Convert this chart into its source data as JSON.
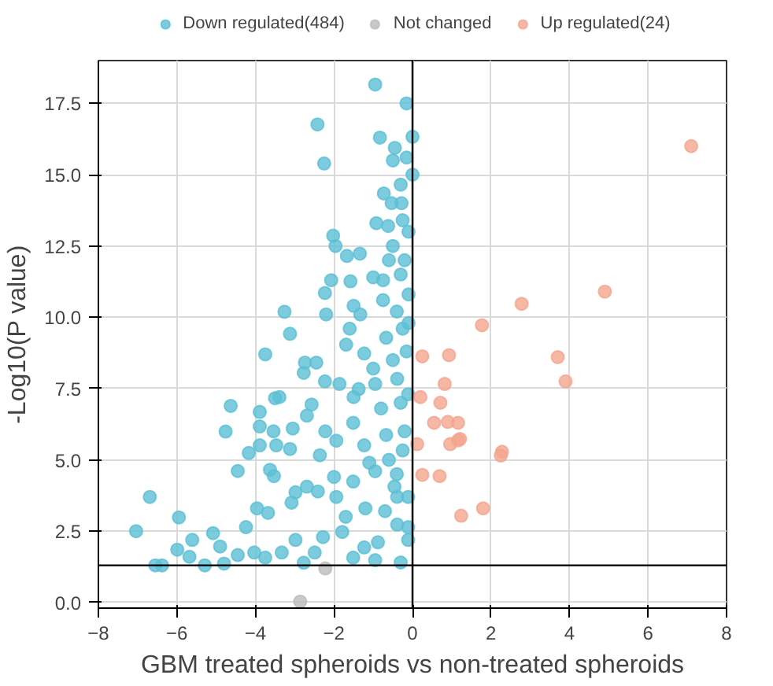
{
  "chart_data": {
    "type": "scatter",
    "xlabel": "GBM treated spheroids vs non-treated spheroids",
    "ylabel": "-Log10(P value)",
    "xlim": [
      -8,
      8
    ],
    "ylim": [
      -0.2,
      19
    ],
    "xticks": [
      -8,
      -6,
      -4,
      -2,
      0,
      2,
      4,
      6,
      8
    ],
    "yticks": [
      {
        "value": 0,
        "label": "0.0"
      },
      {
        "value": 2.5,
        "label": "2.5"
      },
      {
        "value": 5,
        "label": "5.0"
      },
      {
        "value": 7.5,
        "label": "7.5"
      },
      {
        "value": 10,
        "label": "10.0"
      },
      {
        "value": 12.5,
        "label": "12.5"
      },
      {
        "value": 15,
        "label": "15.0"
      },
      {
        "value": 17.5,
        "label": "17.5"
      }
    ],
    "grid": true,
    "legend": "top",
    "marker": "circle",
    "ref_lines": [
      {
        "axis": "y",
        "value": 1.3,
        "color": "#000000"
      },
      {
        "axis": "x",
        "value": 0,
        "color": "#000000"
      }
    ],
    "series": [
      {
        "name": "Down regulated(484)",
        "color": "#5bbfd6",
        "x": [
          -0.95,
          -0.15,
          -2.42,
          -2.25,
          -0.83,
          0,
          -0.45,
          -0.5,
          -0.15,
          0,
          -0.3,
          -0.73,
          -0.53,
          -0.28,
          -0.92,
          -0.62,
          -0.25,
          -0.1,
          -2.02,
          -1.96,
          -1.34,
          -1.67,
          -0.6,
          -0.2,
          -2.07,
          -1.58,
          -1.0,
          -0.75,
          -2.23,
          -1.5,
          -0.75,
          -3.26,
          -2.2,
          -1.33,
          -0.4,
          -0.1,
          -1.6,
          -3.12,
          -3.75,
          -2.74,
          -2.45,
          -2.77,
          -1.69,
          -1.23,
          -0.67,
          -0.25,
          -2.23,
          -1.86,
          -1.37,
          -0.95,
          -0.39,
          -0.11,
          -4.63,
          -3.5,
          -3.39,
          -2.57,
          -2.69,
          -3.89,
          -3.89,
          -3.54,
          -3.05,
          -4.76,
          -3.47,
          -3.89,
          -4.17,
          -3.12,
          -2.22,
          -1.94,
          -1.51,
          -1.23,
          -0.67,
          -0.25,
          -2.36,
          -4.45,
          -3.63,
          -3.53,
          -2.98,
          -3.08,
          -2.69,
          -2.41,
          -1.94,
          -1.51,
          -0.95,
          -0.46,
          -0.11,
          -6.69,
          -3.96,
          -3.68,
          -5.95,
          -7.04,
          -5.08,
          -5.61,
          -5.99,
          -5.68,
          -6.55,
          -6.38,
          -5.29,
          -4.8,
          -4.9,
          -4.45,
          -4.24,
          -4.03,
          -3.75,
          -3.33,
          -2.98,
          -2.77,
          -2.49,
          -2.28,
          -1.79,
          -1.51,
          -1.23,
          -0.95,
          -0.88,
          -0.39,
          -0.11,
          -0.11,
          -0.39,
          -0.5,
          -0.3,
          -0.8,
          -0.2,
          -0.6,
          -1.1,
          -0.4,
          -1.5,
          -1.0,
          -0.15,
          -0.7,
          -0.3,
          -1.2,
          -2.0,
          -1.7,
          -0.1,
          -0.3,
          -0.5
        ],
        "values": [
          18.16,
          17.5,
          16.76,
          15.39,
          16.3,
          16.33,
          15.94,
          15.5,
          15.6,
          15.0,
          14.65,
          14.34,
          14.0,
          14.0,
          13.3,
          13.2,
          13.4,
          13.0,
          12.86,
          12.5,
          12.23,
          12.15,
          12.0,
          12.0,
          11.3,
          11.26,
          11.4,
          11.3,
          10.85,
          10.4,
          10.6,
          10.19,
          10.1,
          10.1,
          10.2,
          9.8,
          9.6,
          9.42,
          8.7,
          8.41,
          8.41,
          8.05,
          9.04,
          8.73,
          9.28,
          9.6,
          7.75,
          7.66,
          7.48,
          7.66,
          7.84,
          7.3,
          6.89,
          7.16,
          7.2,
          6.94,
          6.55,
          6.68,
          6.17,
          6.0,
          6.1,
          5.99,
          5.51,
          5.51,
          5.24,
          5.38,
          6.0,
          5.67,
          6.3,
          5.51,
          5.87,
          5.33,
          5.16,
          4.61,
          4.65,
          4.43,
          3.86,
          3.5,
          4.06,
          3.89,
          3.7,
          4.24,
          4.6,
          4.06,
          3.7,
          3.7,
          3.3,
          3.14,
          2.98,
          2.5,
          2.43,
          2.19,
          1.85,
          1.6,
          1.3,
          1.3,
          1.3,
          1.36,
          1.96,
          1.66,
          2.64,
          1.75,
          1.57,
          1.75,
          2.19,
          1.39,
          1.75,
          2.29,
          2.47,
          1.57,
          1.93,
          1.48,
          2.11,
          2.73,
          2.64,
          2.19,
          3.7,
          8.5,
          7.0,
          6.8,
          6.0,
          5.0,
          4.9,
          4.5,
          7.2,
          8.2,
          8.8,
          3.2,
          1.4,
          3.3,
          4.4,
          3.0,
          10.8,
          11.5,
          12.5
        ]
      },
      {
        "name": "Not changed",
        "color": "#bcbcbc",
        "x": [
          -2.86,
          -2.22
        ],
        "values": [
          0.03,
          1.19
        ]
      },
      {
        "name": "Up regulated(24)",
        "color": "#f4a58e",
        "x": [
          7.1,
          4.9,
          2.78,
          1.77,
          0.25,
          0.93,
          3.7,
          3.9,
          0.82,
          0.2,
          0.71,
          0.55,
          0.9,
          1.16,
          0.12,
          0.96,
          1.21,
          1.16,
          2.28,
          2.25,
          0.25,
          0.69,
          1.24,
          1.8
        ],
        "values": [
          16.0,
          10.9,
          10.47,
          9.72,
          8.63,
          8.67,
          8.6,
          7.75,
          7.66,
          7.2,
          7.0,
          6.3,
          6.33,
          6.3,
          5.55,
          5.55,
          5.73,
          5.68,
          5.28,
          5.15,
          4.47,
          4.43,
          3.04,
          3.3
        ]
      }
    ]
  }
}
